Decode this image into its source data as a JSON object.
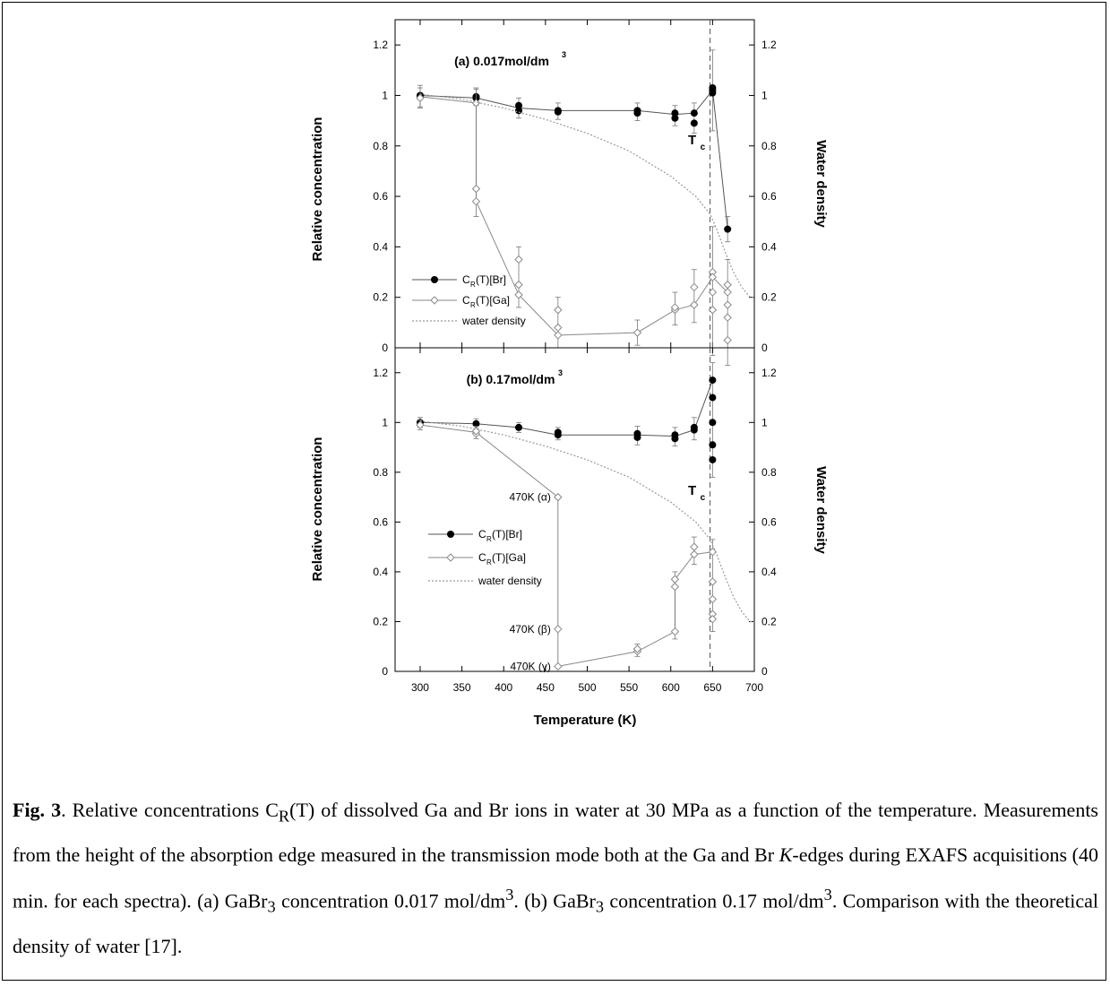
{
  "figure": {
    "xlabel": "Temperature (K)",
    "ylabel_left": "Relative concentration",
    "ylabel_right": "Water density",
    "tc_label": "T",
    "tc_sub": "c",
    "legend": [
      {
        "key": "br",
        "text": "C",
        "sub": "R",
        "tail": "(T)[Br]"
      },
      {
        "key": "ga",
        "text": "C",
        "sub": "R",
        "tail": "(T)[Ga]"
      },
      {
        "key": "water",
        "text": "water density"
      }
    ]
  },
  "chart_data": [
    {
      "type": "scatter",
      "title": "(a) 0.017mol/dm",
      "title_sup": "3",
      "xlim": [
        270,
        700
      ],
      "xticks": [
        300,
        350,
        400,
        450,
        500,
        550,
        600,
        650,
        700
      ],
      "ylim": [
        0,
        1.3
      ],
      "yticks": [
        0,
        0.2,
        0.4,
        0.6,
        0.8,
        1,
        1.2
      ],
      "yticklabels": [
        "0",
        "0.2",
        "0.4",
        "0.6",
        "0.8",
        "1",
        "1.2"
      ],
      "tc": 647,
      "series": [
        {
          "name": "C_R(T)[Br]",
          "line": [
            [
              300,
              1.0
            ],
            [
              367,
              0.99
            ],
            [
              418,
              0.95
            ],
            [
              465,
              0.94
            ],
            [
              560,
              0.94
            ],
            [
              605,
              0.925
            ],
            [
              628,
              0.93
            ],
            [
              650,
              1.02
            ],
            [
              668,
              0.47
            ]
          ],
          "points": [
            [
              300,
              1.0
            ],
            [
              300,
              0.995
            ],
            [
              367,
              0.995
            ],
            [
              367,
              0.99
            ],
            [
              418,
              0.94
            ],
            [
              418,
              0.96
            ],
            [
              465,
              0.935
            ],
            [
              465,
              0.94
            ],
            [
              560,
              0.93
            ],
            [
              560,
              0.94
            ],
            [
              605,
              0.91
            ],
            [
              605,
              0.93
            ],
            [
              628,
              0.89
            ],
            [
              628,
              0.93
            ],
            [
              650,
              1.01
            ],
            [
              650,
              1.02
            ],
            [
              650,
              1.03
            ],
            [
              668,
              0.47
            ]
          ],
          "errors": [
            [
              300,
              0.04
            ],
            [
              367,
              0.03
            ],
            [
              418,
              0.03
            ],
            [
              465,
              0.03
            ],
            [
              560,
              0.03
            ],
            [
              605,
              0.03
            ],
            [
              628,
              0.04
            ],
            [
              650,
              0.15
            ],
            [
              668,
              0.05
            ]
          ]
        },
        {
          "name": "C_R(T)[Ga]",
          "line": [
            [
              300,
              0.995
            ],
            [
              367,
              0.97
            ],
            [
              367,
              0.58
            ],
            [
              418,
              0.21
            ],
            [
              465,
              0.05
            ],
            [
              560,
              0.06
            ],
            [
              605,
              0.15
            ],
            [
              628,
              0.17
            ],
            [
              650,
              0.28
            ],
            [
              668,
              0.22
            ]
          ],
          "points": [
            [
              300,
              0.99
            ],
            [
              367,
              0.97
            ],
            [
              367,
              0.63
            ],
            [
              367,
              0.58
            ],
            [
              418,
              0.35
            ],
            [
              418,
              0.25
            ],
            [
              418,
              0.21
            ],
            [
              465,
              0.15
            ],
            [
              465,
              0.08
            ],
            [
              465,
              0.05
            ],
            [
              560,
              0.06
            ],
            [
              605,
              0.15
            ],
            [
              605,
              0.16
            ],
            [
              628,
              0.24
            ],
            [
              628,
              0.17
            ],
            [
              650,
              0.3
            ],
            [
              650,
              0.28
            ],
            [
              650,
              0.22
            ],
            [
              650,
              0.15
            ],
            [
              668,
              0.25
            ],
            [
              668,
              0.22
            ],
            [
              668,
              0.17
            ],
            [
              668,
              0.12
            ],
            [
              668,
              0.03
            ]
          ],
          "errors": [
            [
              300,
              0.04
            ],
            [
              367,
              0.06
            ],
            [
              418,
              0.05
            ],
            [
              465,
              0.05
            ],
            [
              560,
              0.05
            ],
            [
              605,
              0.06
            ],
            [
              628,
              0.07
            ],
            [
              650,
              0.18
            ],
            [
              668,
              0.1
            ]
          ]
        },
        {
          "name": "water density",
          "line": [
            [
              300,
              1.005
            ],
            [
              350,
              0.985
            ],
            [
              400,
              0.95
            ],
            [
              450,
              0.905
            ],
            [
              500,
              0.85
            ],
            [
              550,
              0.78
            ],
            [
              600,
              0.68
            ],
            [
              630,
              0.6
            ],
            [
              647,
              0.53
            ],
            [
              655,
              0.47
            ],
            [
              665,
              0.38
            ],
            [
              675,
              0.3
            ],
            [
              685,
              0.24
            ],
            [
              695,
              0.2
            ],
            [
              700,
              0.2
            ]
          ]
        }
      ]
    },
    {
      "type": "scatter",
      "title": "(b) 0.17mol/dm",
      "title_sup": "3",
      "xlim": [
        270,
        700
      ],
      "xticks": [
        300,
        350,
        400,
        450,
        500,
        550,
        600,
        650,
        700
      ],
      "xticklabels": [
        "300",
        "350",
        "400",
        "450",
        "500",
        "550",
        "600",
        "650",
        "700"
      ],
      "ylim": [
        0,
        1.3
      ],
      "yticks": [
        0,
        0.2,
        0.4,
        0.6,
        0.8,
        1,
        1.2
      ],
      "yticklabels": [
        "0",
        "0.2",
        "0.4",
        "0.6",
        "0.8",
        "1",
        "1.2"
      ],
      "tc": 647,
      "annotations": [
        {
          "text": "470K (α)",
          "x": 465,
          "y": 0.7
        },
        {
          "text": "470K (β)",
          "x": 465,
          "y": 0.17
        },
        {
          "text": "470K (γ)",
          "x": 465,
          "y": 0.02
        }
      ],
      "series": [
        {
          "name": "C_R(T)[Br]",
          "line": [
            [
              300,
              1.0
            ],
            [
              367,
              0.995
            ],
            [
              418,
              0.98
            ],
            [
              465,
              0.95
            ],
            [
              560,
              0.95
            ],
            [
              605,
              0.945
            ],
            [
              628,
              0.97
            ],
            [
              650,
              1.17
            ]
          ],
          "points": [
            [
              300,
              1.0
            ],
            [
              367,
              0.995
            ],
            [
              418,
              0.98
            ],
            [
              465,
              0.95
            ],
            [
              465,
              0.96
            ],
            [
              560,
              0.94
            ],
            [
              560,
              0.955
            ],
            [
              605,
              0.935
            ],
            [
              605,
              0.95
            ],
            [
              628,
              0.97
            ],
            [
              628,
              0.98
            ],
            [
              650,
              1.17
            ],
            [
              650,
              1.1
            ],
            [
              650,
              1.0
            ],
            [
              650,
              0.91
            ],
            [
              650,
              0.85
            ]
          ],
          "errors": [
            [
              300,
              0.02
            ],
            [
              367,
              0.02
            ],
            [
              418,
              0.02
            ],
            [
              465,
              0.02
            ],
            [
              560,
              0.03
            ],
            [
              605,
              0.03
            ],
            [
              628,
              0.04
            ],
            [
              650,
              0.07
            ]
          ]
        },
        {
          "name": "C_R(T)[Ga]",
          "line": [
            [
              300,
              0.99
            ],
            [
              367,
              0.96
            ],
            [
              465,
              0.7
            ],
            [
              465,
              0.02
            ],
            [
              560,
              0.08
            ],
            [
              605,
              0.16
            ],
            [
              605,
              0.37
            ],
            [
              628,
              0.47
            ],
            [
              650,
              0.48
            ]
          ],
          "points": [
            [
              300,
              0.99
            ],
            [
              367,
              0.955
            ],
            [
              367,
              0.965
            ],
            [
              465,
              0.7
            ],
            [
              465,
              0.17
            ],
            [
              465,
              0.02
            ],
            [
              560,
              0.08
            ],
            [
              560,
              0.09
            ],
            [
              605,
              0.16
            ],
            [
              605,
              0.34
            ],
            [
              605,
              0.37
            ],
            [
              628,
              0.47
            ],
            [
              628,
              0.5
            ],
            [
              650,
              0.48
            ],
            [
              650,
              0.36
            ],
            [
              650,
              0.29
            ],
            [
              650,
              0.23
            ],
            [
              650,
              0.21
            ]
          ],
          "errors": [
            [
              300,
              0.02
            ],
            [
              367,
              0.02
            ],
            [
              560,
              0.02
            ],
            [
              605,
              0.03
            ],
            [
              628,
              0.04
            ],
            [
              650,
              0.05
            ]
          ]
        },
        {
          "name": "water density",
          "line": [
            [
              300,
              1.005
            ],
            [
              350,
              0.985
            ],
            [
              400,
              0.95
            ],
            [
              450,
              0.905
            ],
            [
              500,
              0.85
            ],
            [
              550,
              0.78
            ],
            [
              600,
              0.68
            ],
            [
              630,
              0.6
            ],
            [
              647,
              0.53
            ],
            [
              655,
              0.47
            ],
            [
              665,
              0.38
            ],
            [
              675,
              0.3
            ],
            [
              685,
              0.24
            ],
            [
              695,
              0.2
            ],
            [
              700,
              0.2
            ]
          ]
        }
      ]
    }
  ],
  "caption": {
    "fig_label": "Fig. 3",
    "part1": ". Relative concentrations C",
    "sub_R": "R",
    "part2": "(T) of dissolved Ga and Br ions in water at 30 MPa as a function of the temperature. Measurements from the height of the absorption edge measured in the transmission mode both at the Ga and Br ",
    "italic_K": "K",
    "part3": "-edges during EXAFS acquisitions (40 min. for each spectra). (a) GaBr",
    "sub_3a": "3",
    "part4": " concentration 0.017 mol/dm",
    "sup_3a": "3",
    "part5": ". (b) GaBr",
    "sub_3b": "3",
    "part6": " concentration 0.17 mol/dm",
    "sup_3b": "3",
    "part7": ". Comparison with the theoretical density of water [17]."
  }
}
